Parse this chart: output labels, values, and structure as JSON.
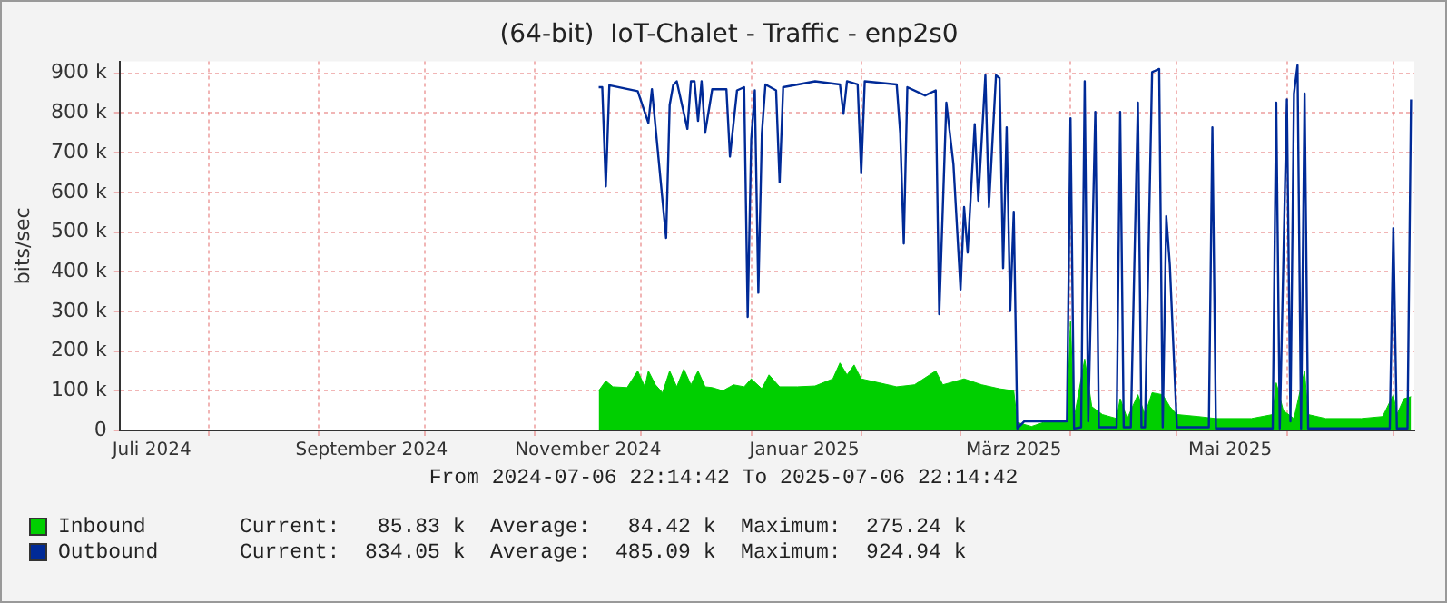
{
  "chart_data": {
    "type": "line",
    "title": "(64-bit)  IoT-Chalet - Traffic - enp2s0",
    "ylabel": "bits/sec",
    "xlim": [
      "2024-07-06T22:14:42",
      "2025-07-06T22:14:42"
    ],
    "xticks": [
      {
        "value": "2024-07-16",
        "label": "Juli 2024"
      },
      {
        "value": "2024-08-01",
        "label": null
      },
      {
        "value": "2024-09-01",
        "label": null
      },
      {
        "value": "2024-09-16",
        "label": "September 2024"
      },
      {
        "value": "2024-10-01",
        "label": null
      },
      {
        "value": "2024-11-01",
        "label": null
      },
      {
        "value": "2024-11-16",
        "label": "November 2024"
      },
      {
        "value": "2024-12-01",
        "label": null
      },
      {
        "value": "2025-01-01",
        "label": null
      },
      {
        "value": "2025-01-16",
        "label": "Januar 2025"
      },
      {
        "value": "2025-02-01",
        "label": null
      },
      {
        "value": "2025-03-01",
        "label": null
      },
      {
        "value": "2025-03-16",
        "label": "März 2025"
      },
      {
        "value": "2025-04-01",
        "label": null
      },
      {
        "value": "2025-05-01",
        "label": null
      },
      {
        "value": "2025-05-16",
        "label": "Mai 2025"
      },
      {
        "value": "2025-06-01",
        "label": null
      },
      {
        "value": "2025-07-01",
        "label": null
      }
    ],
    "ylim": [
      0,
      930000
    ],
    "yticks": [
      0,
      {
        "value": 100000,
        "label": "100 k"
      },
      {
        "value": 200000,
        "label": "200 k"
      },
      {
        "value": 300000,
        "label": "300 k"
      },
      {
        "value": 400000,
        "label": "400 k"
      },
      {
        "value": 500000,
        "label": "500 k"
      },
      {
        "value": 600000,
        "label": "600 k"
      },
      {
        "value": 700000,
        "label": "700 k"
      },
      {
        "value": 800000,
        "label": "800 k"
      },
      {
        "value": 900000,
        "label": "900 k"
      }
    ],
    "grid": true,
    "legend": "bottom",
    "marker": "none",
    "annotations": [
      "From 2024-07-06 22:14:42 To 2025-07-06 22:14:42",
      "Current:   85.83 k  Average:   84.42 k  Maximum:  275.24 k",
      "Current:  834.05 k  Average:  485.09 k  Maximum:  924.94 k"
    ],
    "series": [
      {
        "name": "Inbound",
        "type": "area",
        "color": "#00cf00",
        "x": [
          "2024-11-19",
          "2024-11-21",
          "2024-11-23",
          "2024-11-27",
          "2024-11-30",
          "2024-12-02",
          "2024-12-03",
          "2024-12-05",
          "2024-12-07",
          "2024-12-09",
          "2024-12-11",
          "2024-12-13",
          "2024-12-15",
          "2024-12-17",
          "2024-12-19",
          "2024-12-21",
          "2024-12-24",
          "2024-12-27",
          "2024-12-30",
          "2025-01-01",
          "2025-01-04",
          "2025-01-06",
          "2025-01-09",
          "2025-01-14",
          "2025-01-19",
          "2025-01-24",
          "2025-01-26",
          "2025-01-28",
          "2025-01-30",
          "2025-02-01",
          "2025-02-06",
          "2025-02-11",
          "2025-02-16",
          "2025-02-22",
          "2025-02-24",
          "2025-03-02",
          "2025-03-07",
          "2025-03-12",
          "2025-03-16",
          "2025-03-17",
          "2025-03-21",
          "2025-03-26",
          "2025-03-31",
          "2025-04-01",
          "2025-04-02",
          "2025-04-05",
          "2025-04-07",
          "2025-04-10",
          "2025-04-14",
          "2025-04-15",
          "2025-04-17",
          "2025-04-20",
          "2025-04-22",
          "2025-04-24",
          "2025-04-27",
          "2025-04-29",
          "2025-05-01",
          "2025-05-07",
          "2025-05-12",
          "2025-05-22",
          "2025-05-28",
          "2025-05-29",
          "2025-05-31",
          "2025-06-03",
          "2025-06-06",
          "2025-06-07",
          "2025-06-12",
          "2025-06-22",
          "2025-06-28",
          "2025-07-01",
          "2025-07-02",
          "2025-07-04",
          "2025-07-06"
        ],
        "values": [
          100000,
          125000,
          110000,
          108000,
          150000,
          110000,
          150000,
          115000,
          95000,
          150000,
          110000,
          155000,
          115000,
          150000,
          110000,
          108000,
          100000,
          115000,
          110000,
          130000,
          105000,
          140000,
          110000,
          110000,
          112000,
          130000,
          170000,
          140000,
          165000,
          130000,
          120000,
          110000,
          115000,
          150000,
          115000,
          130000,
          115000,
          105000,
          100000,
          20000,
          10000,
          25000,
          20000,
          275000,
          30000,
          180000,
          60000,
          40000,
          30000,
          80000,
          30000,
          90000,
          40000,
          95000,
          90000,
          60000,
          40000,
          35000,
          30000,
          30000,
          40000,
          120000,
          50000,
          30000,
          150000,
          40000,
          30000,
          30000,
          35000,
          90000,
          40000,
          80000,
          85000
        ]
      },
      {
        "name": "Outbound",
        "color": "#002a97",
        "x": [
          "2024-11-19",
          "2024-11-20",
          "2024-11-21",
          "2024-11-22",
          "2024-11-30",
          "2024-12-03",
          "2024-12-04",
          "2024-12-08",
          "2024-12-09",
          "2024-12-10",
          "2024-12-11",
          "2024-12-14",
          "2024-12-15",
          "2024-12-16",
          "2024-12-17",
          "2024-12-18",
          "2024-12-19",
          "2024-12-21",
          "2024-12-25",
          "2024-12-26",
          "2024-12-28",
          "2024-12-30",
          "2024-12-31",
          "2025-01-01",
          "2025-01-02",
          "2025-01-03",
          "2025-01-04",
          "2025-01-05",
          "2025-01-08",
          "2025-01-09",
          "2025-01-10",
          "2025-01-19",
          "2025-01-26",
          "2025-01-27",
          "2025-01-28",
          "2025-01-31",
          "2025-02-01",
          "2025-02-02",
          "2025-02-11",
          "2025-02-12",
          "2025-02-13",
          "2025-02-14",
          "2025-02-19",
          "2025-02-22",
          "2025-02-23",
          "2025-02-25",
          "2025-02-27",
          "2025-03-01",
          "2025-03-02",
          "2025-03-03",
          "2025-03-05",
          "2025-03-06",
          "2025-03-08",
          "2025-03-09",
          "2025-03-11",
          "2025-03-12",
          "2025-03-13",
          "2025-03-14",
          "2025-03-15",
          "2025-03-16",
          "2025-03-17",
          "2025-03-19",
          "2025-03-31",
          "2025-04-01",
          "2025-04-02",
          "2025-04-04",
          "2025-04-05",
          "2025-04-06",
          "2025-04-08",
          "2025-04-09",
          "2025-04-14",
          "2025-04-15",
          "2025-04-16",
          "2025-04-18",
          "2025-04-20",
          "2025-04-21",
          "2025-04-22",
          "2025-04-24",
          "2025-04-26",
          "2025-04-27",
          "2025-04-28",
          "2025-04-29",
          "2025-05-01",
          "2025-05-10",
          "2025-05-11",
          "2025-05-12",
          "2025-05-28",
          "2025-05-29",
          "2025-05-30",
          "2025-06-01",
          "2025-06-02",
          "2025-06-03",
          "2025-06-04",
          "2025-06-05",
          "2025-06-06",
          "2025-06-07",
          "2025-06-30",
          "2025-07-01",
          "2025-07-02",
          "2025-07-05",
          "2025-07-06"
        ],
        "values": [
          865000,
          865000,
          615000,
          870000,
          855000,
          775000,
          860000,
          485000,
          820000,
          870000,
          880000,
          760000,
          880000,
          880000,
          780000,
          880000,
          750000,
          860000,
          860000,
          690000,
          857000,
          865000,
          286000,
          733000,
          857000,
          347000,
          749000,
          872000,
          857000,
          625000,
          865000,
          880000,
          872000,
          798000,
          880000,
          872000,
          648000,
          880000,
          872000,
          749000,
          471000,
          865000,
          844000,
          857000,
          293000,
          826000,
          671000,
          355000,
          563000,
          448000,
          772000,
          579000,
          895000,
          563000,
          895000,
          888000,
          409000,
          764000,
          301000,
          551000,
          5000,
          23000,
          23000,
          787000,
          5000,
          8000,
          880000,
          23000,
          803000,
          8000,
          8000,
          803000,
          8000,
          8000,
          826000,
          8000,
          8000,
          903000,
          911000,
          8000,
          540000,
          417000,
          8000,
          8000,
          764000,
          5000,
          5000,
          826000,
          5000,
          834000,
          23000,
          849000,
          920000,
          5000,
          849000,
          5000,
          5000,
          510000,
          5000,
          5000,
          834000
        ]
      }
    ]
  }
}
